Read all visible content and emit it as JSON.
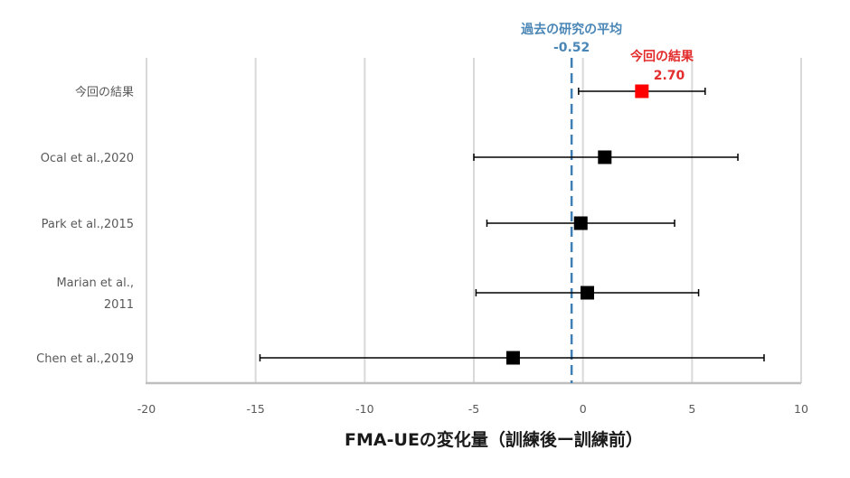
{
  "chart_data": {
    "type": "scatter",
    "subtype": "forest-plot",
    "xlabel": "FMA-UEの変化量（訓練後ー訓練前）",
    "xlim": [
      -20,
      10
    ],
    "xticks": [
      "-20",
      "-15",
      "-10",
      "-5",
      "0",
      "5",
      "10"
    ],
    "grid": "vertical",
    "studies": [
      {
        "label_lines": [
          "今回の結果"
        ],
        "estimate": 2.7,
        "ci": [
          -0.2,
          5.6
        ],
        "color": "#ff0000"
      },
      {
        "label_lines": [
          "Ocal et al.,2020"
        ],
        "estimate": 1.0,
        "ci": [
          -5.0,
          7.1
        ],
        "color": "#000000"
      },
      {
        "label_lines": [
          "Park et al.,2015"
        ],
        "estimate": -0.1,
        "ci": [
          -4.4,
          4.2
        ],
        "color": "#000000"
      },
      {
        "label_lines": [
          "Marian et al.,",
          "2011"
        ],
        "estimate": 0.2,
        "ci": [
          -4.9,
          5.3
        ],
        "color": "#000000"
      },
      {
        "label_lines": [
          "Chen et al.,2019"
        ],
        "estimate": -3.2,
        "ci": [
          -14.8,
          8.3
        ],
        "color": "#000000"
      }
    ],
    "reference_line": {
      "value": -0.52,
      "label": "過去の研究の平均",
      "value_label": "-0.52",
      "color": "#3f7fb5",
      "style": "dashed"
    },
    "annotation": {
      "label": "今回の結果",
      "value_label": "2.70",
      "color": "#e32c2c"
    }
  }
}
